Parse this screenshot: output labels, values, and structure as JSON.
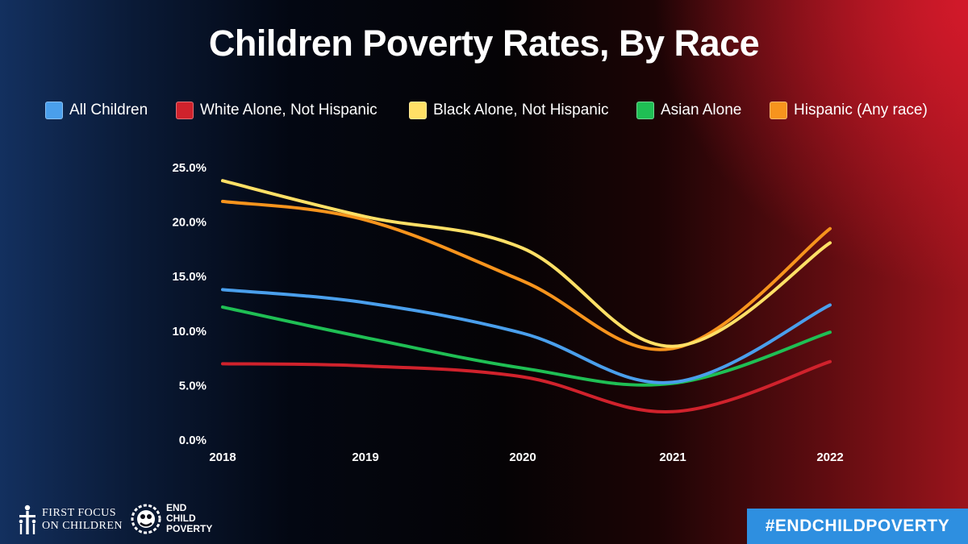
{
  "chart_data": {
    "type": "line",
    "title": "Children Poverty Rates, By Race",
    "categories": [
      "2018",
      "2019",
      "2020",
      "2021",
      "2022"
    ],
    "y_ticks": [
      "0.0%",
      "5.0%",
      "10.0%",
      "15.0%",
      "20.0%",
      "25.0%"
    ],
    "ylim": [
      0,
      25
    ],
    "grid": false,
    "legend_position": "top",
    "series": [
      {
        "name": "All Children",
        "color": "#4a9fec",
        "values": [
          13.8,
          12.6,
          9.8,
          5.3,
          12.4
        ]
      },
      {
        "name": "White Alone, Not Hispanic",
        "color": "#d0222c",
        "values": [
          7.0,
          6.8,
          5.8,
          2.6,
          7.2
        ]
      },
      {
        "name": "Black Alone, Not Hispanic",
        "color": "#ffe066",
        "values": [
          23.8,
          20.5,
          17.6,
          8.6,
          18.1
        ]
      },
      {
        "name": "Asian Alone",
        "color": "#1fbf54",
        "values": [
          12.2,
          9.4,
          6.6,
          5.2,
          9.9
        ]
      },
      {
        "name": "Hispanic (Any race)",
        "color": "#f7941d",
        "values": [
          21.9,
          20.2,
          14.6,
          8.4,
          19.4
        ]
      }
    ]
  },
  "footer": {
    "first_focus_line1": "FIRST FOCUS",
    "first_focus_line2": "ON CHILDREN",
    "ecp_line1": "END",
    "ecp_line2": "CHILD",
    "ecp_line3": "POVERTY",
    "hashtag": "#ENDCHILDPOVERTY",
    "hashtag_color": "#2e8fe0"
  }
}
